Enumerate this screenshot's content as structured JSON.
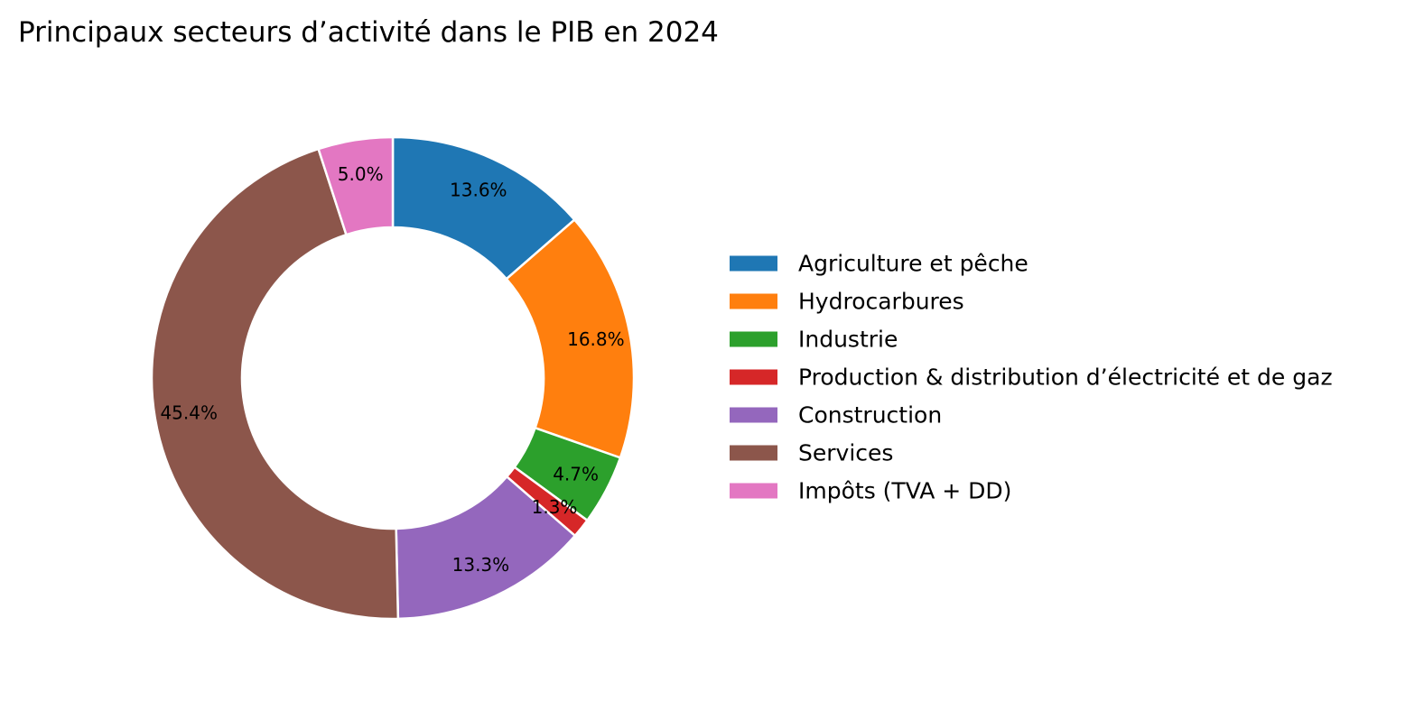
{
  "chart_data": {
    "type": "pie",
    "variant": "donut",
    "title": "Principaux secteurs d’activité dans le PIB en 2024",
    "labels": [
      "Agriculture et pêche",
      "Hydrocarbures",
      "Industrie",
      "Production & distribution d’électricité et de gaz",
      "Construction",
      "Services",
      "Impôts (TVA + DD)"
    ],
    "values": [
      13.6,
      16.8,
      4.7,
      1.3,
      13.3,
      45.4,
      5.0
    ],
    "value_labels": [
      "13.6%",
      "16.8%",
      "4.7%",
      "1.3%",
      "13.3%",
      "45.4%",
      "5.0%"
    ],
    "colors": [
      "#1f77b4",
      "#ff7f0e",
      "#2ca02c",
      "#d62728",
      "#9467bd",
      "#8c564b",
      "#e377c2"
    ],
    "start_angle_deg": 90,
    "direction": "clockwise",
    "legend_position": "right"
  }
}
